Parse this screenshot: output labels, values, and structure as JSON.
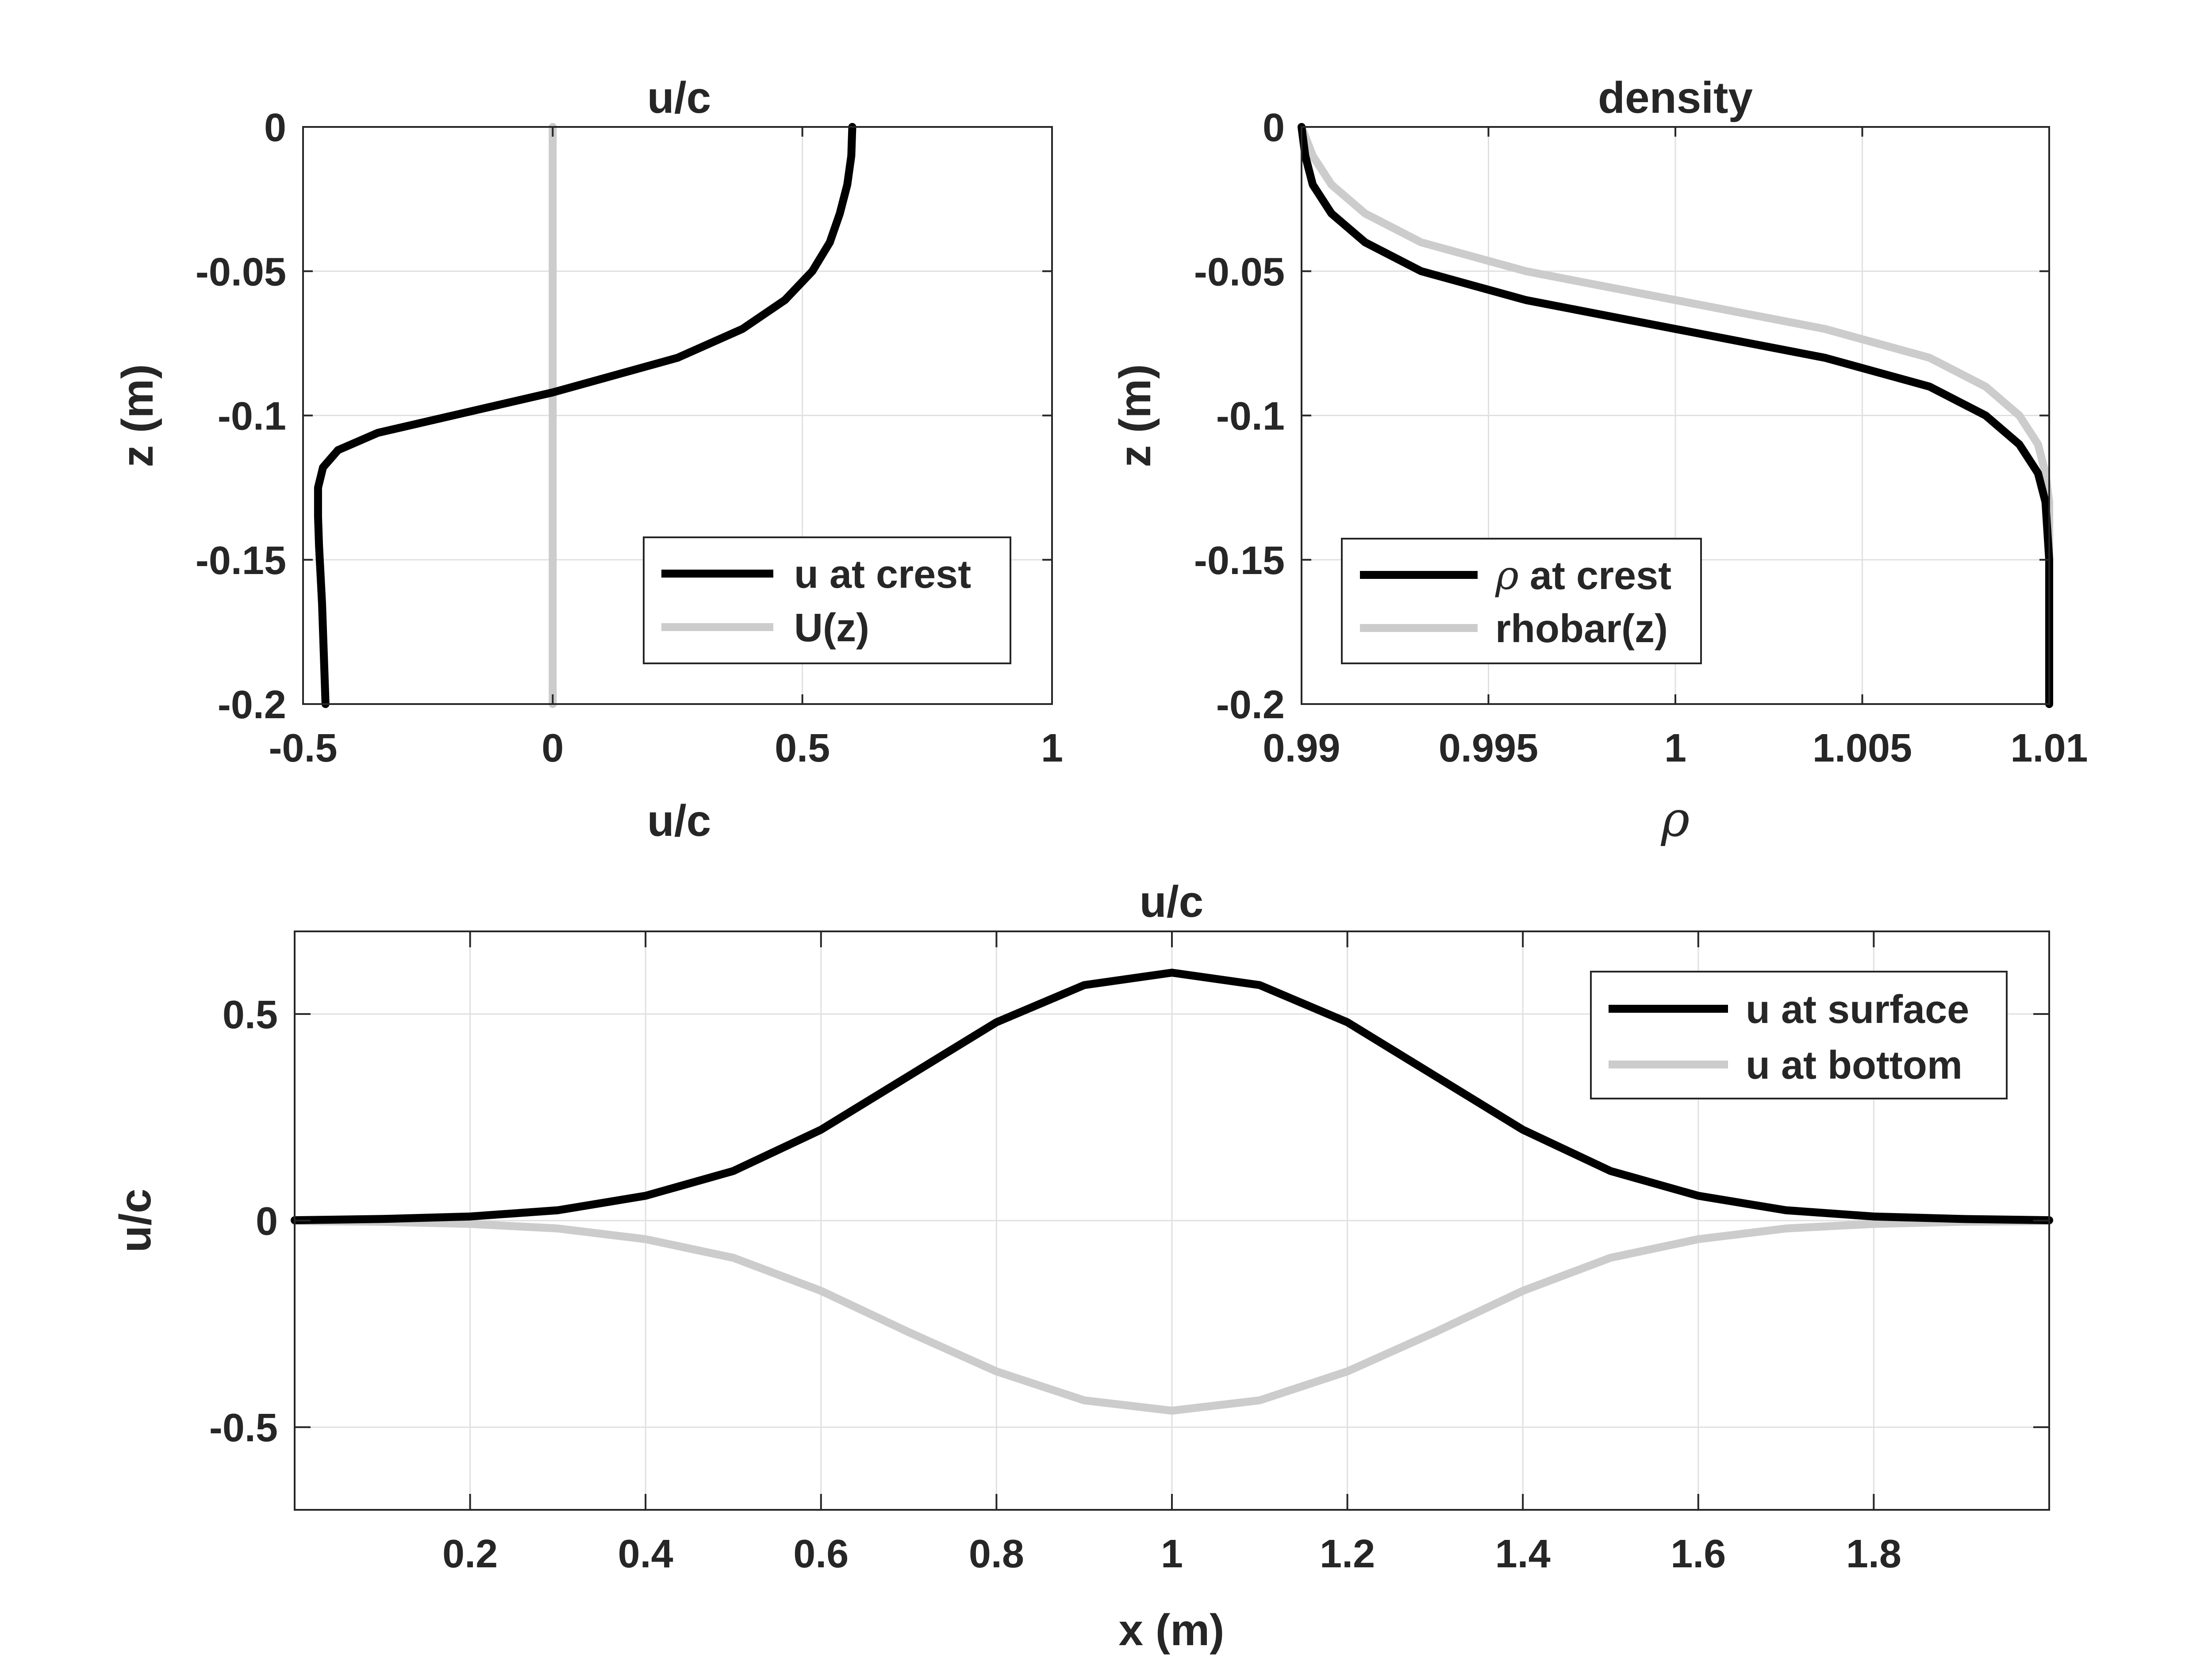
{
  "colors": {
    "series_black": "#000000",
    "series_gray": "#cccccc",
    "grid": "#e0e0e0",
    "axis": "#262626"
  },
  "chart_data": [
    {
      "type": "line",
      "title": "u/c",
      "xlabel": "u/c",
      "ylabel": "z (m)",
      "xlim": [
        -0.5,
        1
      ],
      "ylim": [
        -0.2,
        0
      ],
      "xticks": [
        -0.5,
        0,
        0.5,
        1
      ],
      "xtick_labels": [
        "-0.5",
        "0",
        "0.5",
        "1"
      ],
      "yticks": [
        -0.2,
        -0.15,
        -0.1,
        -0.05,
        0
      ],
      "ytick_labels": [
        "-0.2",
        "-0.15",
        "-0.1",
        "-0.05",
        "0"
      ],
      "grid": true,
      "legend_location": "bottom-right",
      "series": [
        {
          "name": "u at crest",
          "color": "#000000",
          "x": [
            0.6,
            0.598,
            0.59,
            0.575,
            0.555,
            0.52,
            0.465,
            0.38,
            0.25,
            0.0,
            -0.2,
            -0.35,
            -0.43,
            -0.46,
            -0.47,
            -0.47,
            -0.468,
            -0.465,
            -0.462,
            -0.459,
            -0.456,
            -0.455
          ],
          "y": [
            0,
            -0.01,
            -0.02,
            -0.03,
            -0.04,
            -0.05,
            -0.06,
            -0.07,
            -0.08,
            -0.092,
            -0.1,
            -0.106,
            -0.112,
            -0.118,
            -0.125,
            -0.135,
            -0.145,
            -0.155,
            -0.165,
            -0.18,
            -0.195,
            -0.2
          ]
        },
        {
          "name": "U(z)",
          "color": "#cccccc",
          "x": [
            0,
            0
          ],
          "y": [
            0,
            -0.2
          ]
        }
      ]
    },
    {
      "type": "line",
      "title": "density",
      "xlabel": "ρ",
      "ylabel": "z (m)",
      "xlim": [
        0.99,
        1.01
      ],
      "ylim": [
        -0.2,
        0
      ],
      "xticks": [
        0.99,
        0.995,
        1,
        1.005,
        1.01
      ],
      "xtick_labels": [
        "0.99",
        "0.995",
        "1",
        "1.005",
        "1.01"
      ],
      "yticks": [
        -0.2,
        -0.15,
        -0.1,
        -0.05,
        0
      ],
      "ytick_labels": [
        "-0.2",
        "-0.15",
        "-0.1",
        "-0.05",
        "0"
      ],
      "grid": true,
      "legend_location": "bottom-left",
      "series": [
        {
          "name": "ρ at crest",
          "color": "#000000",
          "x": [
            0.99,
            0.9901,
            0.9903,
            0.9908,
            0.9917,
            0.9932,
            0.996,
            1.0,
            1.004,
            1.0068,
            1.0083,
            1.0092,
            1.0097,
            1.0099,
            1.01,
            1.01
          ],
          "y": [
            0,
            -0.01,
            -0.02,
            -0.03,
            -0.04,
            -0.05,
            -0.06,
            -0.07,
            -0.08,
            -0.09,
            -0.1,
            -0.11,
            -0.12,
            -0.13,
            -0.15,
            -0.2
          ]
        },
        {
          "name": "rhobar(z)",
          "color": "#cccccc",
          "x": [
            0.99,
            0.9903,
            0.9908,
            0.9917,
            0.9932,
            0.996,
            1.0,
            1.004,
            1.0068,
            1.0083,
            1.0092,
            1.0097,
            1.0099,
            1.01,
            1.01
          ],
          "y": [
            0,
            -0.01,
            -0.02,
            -0.03,
            -0.04,
            -0.05,
            -0.06,
            -0.07,
            -0.08,
            -0.09,
            -0.1,
            -0.11,
            -0.12,
            -0.13,
            -0.2
          ]
        }
      ]
    },
    {
      "type": "line",
      "title": "u/c",
      "xlabel": "x (m)",
      "ylabel": "u/c",
      "xlim": [
        0,
        2
      ],
      "ylim": [
        -0.7,
        0.7
      ],
      "xticks": [
        0.2,
        0.4,
        0.6,
        0.8,
        1,
        1.2,
        1.4,
        1.6,
        1.8
      ],
      "xtick_labels": [
        "0.2",
        "0.4",
        "0.6",
        "0.8",
        "1",
        "1.2",
        "1.4",
        "1.6",
        "1.8"
      ],
      "yticks": [
        -0.5,
        0,
        0.5
      ],
      "ytick_labels": [
        "-0.5",
        "0",
        "0.5"
      ],
      "grid": true,
      "legend_location": "top-right",
      "series": [
        {
          "name": "u at surface",
          "color": "#000000",
          "x": [
            0.0,
            0.1,
            0.2,
            0.3,
            0.4,
            0.5,
            0.6,
            0.7,
            0.8,
            0.9,
            1.0,
            1.1,
            1.2,
            1.3,
            1.4,
            1.5,
            1.6,
            1.7,
            1.8,
            1.9,
            2.0
          ],
          "y": [
            0.001,
            0.004,
            0.01,
            0.025,
            0.06,
            0.12,
            0.22,
            0.35,
            0.48,
            0.57,
            0.6,
            0.57,
            0.48,
            0.35,
            0.22,
            0.12,
            0.06,
            0.025,
            0.01,
            0.004,
            0.001
          ]
        },
        {
          "name": "u at bottom",
          "color": "#cccccc",
          "x": [
            0.0,
            0.1,
            0.2,
            0.3,
            0.4,
            0.5,
            0.6,
            0.7,
            0.8,
            0.9,
            1.0,
            1.1,
            1.2,
            1.3,
            1.4,
            1.5,
            1.6,
            1.7,
            1.8,
            1.9,
            2.0
          ],
          "y": [
            -0.001,
            -0.003,
            -0.008,
            -0.019,
            -0.045,
            -0.09,
            -0.17,
            -0.27,
            -0.365,
            -0.435,
            -0.46,
            -0.435,
            -0.365,
            -0.27,
            -0.17,
            -0.09,
            -0.045,
            -0.019,
            -0.008,
            -0.003,
            -0.001
          ]
        }
      ]
    }
  ]
}
